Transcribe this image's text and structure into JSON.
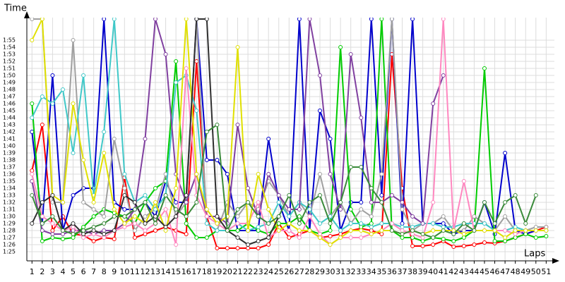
{
  "chart_data": {
    "type": "line",
    "y_label": "Time",
    "x_label": "Laps",
    "x": [
      1,
      2,
      3,
      4,
      5,
      6,
      7,
      8,
      9,
      10,
      11,
      12,
      13,
      14,
      15,
      16,
      17,
      18,
      19,
      20,
      21,
      22,
      23,
      24,
      25,
      26,
      27,
      28,
      29,
      30,
      31,
      32,
      33,
      34,
      35,
      36,
      37,
      38,
      39,
      40,
      41,
      42,
      43,
      44,
      45,
      46,
      47,
      48,
      49,
      50,
      51
    ],
    "xlim": [
      0.5,
      51.8
    ],
    "xticks": [
      1,
      2,
      3,
      4,
      5,
      6,
      7,
      8,
      9,
      10,
      11,
      12,
      13,
      14,
      15,
      16,
      17,
      18,
      19,
      20,
      21,
      22,
      23,
      24,
      25,
      26,
      27,
      28,
      29,
      30,
      31,
      32,
      33,
      34,
      35,
      36,
      37,
      38,
      39,
      40,
      41,
      42,
      43,
      44,
      45,
      46,
      47,
      48,
      49,
      50,
      51
    ],
    "ylim": [
      83.7,
      118.2
    ],
    "yticks": [
      {
        "value": 85,
        "label": "1:25"
      },
      {
        "value": 86,
        "label": "1:26"
      },
      {
        "value": 87,
        "label": "1:27"
      },
      {
        "value": 88,
        "label": "1:28"
      },
      {
        "value": 89,
        "label": "1:29"
      },
      {
        "value": 90,
        "label": "1:30"
      },
      {
        "value": 91,
        "label": "1:31"
      },
      {
        "value": 92,
        "label": "1:32"
      },
      {
        "value": 93,
        "label": "1:33"
      },
      {
        "value": 94,
        "label": "1:34"
      },
      {
        "value": 95,
        "label": "1:35"
      },
      {
        "value": 96,
        "label": "1:36"
      },
      {
        "value": 97,
        "label": "1:37"
      },
      {
        "value": 98,
        "label": "1:38"
      },
      {
        "value": 99,
        "label": "1:39"
      },
      {
        "value": 100,
        "label": "1:40"
      },
      {
        "value": 101,
        "label": "1:41"
      },
      {
        "value": 102,
        "label": "1:42"
      },
      {
        "value": 103,
        "label": "1:43"
      },
      {
        "value": 104,
        "label": "1:44"
      },
      {
        "value": 105,
        "label": "1:45"
      },
      {
        "value": 106,
        "label": "1:46"
      },
      {
        "value": 107,
        "label": "1:47"
      },
      {
        "value": 108,
        "label": "1:48"
      },
      {
        "value": 109,
        "label": "1:49"
      },
      {
        "value": 110,
        "label": "1:50"
      },
      {
        "value": 111,
        "label": "1:51"
      },
      {
        "value": 112,
        "label": "1:52"
      },
      {
        "value": 113,
        "label": "1:53"
      },
      {
        "value": 114,
        "label": "1:54"
      },
      {
        "value": 115,
        "label": "1:55"
      }
    ],
    "grid": true,
    "series": [
      {
        "color": "#ff0000",
        "values": [
          96.5,
          103,
          88,
          90,
          87.5,
          87.3,
          86.5,
          87,
          86.8,
          95.5,
          87,
          87.5,
          88,
          88.5,
          88,
          87.5,
          112,
          90,
          85.5,
          85.5,
          85.5,
          85.5,
          85.5,
          86,
          89,
          87,
          87.5,
          88,
          87,
          87.2,
          87.5,
          88,
          88.3,
          88,
          87.5,
          113,
          94,
          85.8,
          85.8,
          86,
          86.5,
          85.7,
          85.8,
          86,
          86.3,
          86.2,
          86.5,
          87,
          87.5,
          88,
          88.5
        ]
      },
      {
        "color": "#0000cc",
        "values": [
          102,
          89,
          110,
          88,
          93,
          94,
          94,
          118,
          92,
          91,
          91,
          92,
          90,
          95,
          92,
          92,
          118,
          98,
          98,
          96,
          88,
          88,
          88,
          101,
          92,
          88,
          118,
          88,
          105,
          101,
          88,
          92,
          92,
          118,
          93,
          118,
          89,
          118,
          89,
          89,
          89,
          87.5,
          88,
          88,
          92,
          87.5,
          99,
          88,
          87.5,
          88,
          88
        ]
      },
      {
        "color": "#00cc00",
        "values": [
          106,
          86.5,
          87,
          86.8,
          87,
          88.5,
          90,
          91,
          90.5,
          90,
          89,
          92,
          94,
          95,
          112,
          89,
          87,
          87,
          88,
          88,
          88,
          89,
          88,
          87.5,
          89,
          89,
          90,
          88,
          87.5,
          88,
          114,
          91,
          88.5,
          89,
          118,
          88,
          87,
          87,
          86.5,
          87,
          86.8,
          86.5,
          87,
          88,
          111,
          86.5,
          86.5,
          87,
          87.5,
          87,
          87.2
        ]
      },
      {
        "color": "#a0a0a0",
        "values": [
          118,
          118,
          92,
          92,
          115,
          92,
          91,
          90,
          101,
          94,
          88,
          90,
          91,
          96,
          90,
          92,
          118,
          89,
          88,
          92,
          90,
          92,
          91,
          95,
          93,
          90,
          92,
          90,
          96,
          90,
          92,
          89,
          91,
          90,
          96,
          118,
          91,
          88,
          89,
          89,
          90,
          88,
          88,
          90,
          89,
          88,
          90,
          88,
          88,
          88.5,
          88.5
        ]
      },
      {
        "color": "#40c8c8",
        "values": [
          104,
          107,
          106,
          108,
          99,
          110,
          93,
          102,
          118,
          96,
          92,
          93,
          91,
          93,
          109,
          110,
          105,
          89,
          88,
          88,
          89,
          88,
          88.5,
          89,
          92,
          90,
          92,
          91,
          89,
          90,
          88,
          89,
          89,
          88.5,
          89,
          89,
          88.5,
          88.5,
          89,
          89,
          88.5,
          88.5,
          89,
          89,
          89,
          88,
          88,
          88.5,
          88,
          88,
          88
        ]
      },
      {
        "color": "#8040a0",
        "values": [
          95,
          88,
          87.5,
          87.5,
          88,
          88,
          87.5,
          88,
          88,
          89,
          91,
          101,
          118,
          113,
          96,
          92,
          96,
          90,
          90,
          89,
          103,
          94,
          90,
          96,
          93,
          91,
          91,
          118,
          110,
          96,
          91,
          113,
          104,
          92,
          92,
          93,
          92,
          90,
          89,
          106,
          110,
          null,
          null,
          null,
          null,
          null,
          null,
          null,
          null,
          null,
          null
        ]
      },
      {
        "color": "#ff88c0",
        "values": [
          96,
          90,
          89,
          88,
          88.5,
          87,
          87.5,
          87,
          88,
          88.5,
          89,
          88,
          89,
          91,
          86,
          111,
          93,
          90,
          89,
          88,
          89,
          89,
          92,
          87,
          88,
          88,
          87,
          90,
          87.5,
          86,
          87,
          87,
          87,
          87.5,
          88,
          89,
          88,
          87.5,
          87,
          92,
          118,
          88,
          95,
          88,
          88,
          88,
          88,
          87.5,
          88,
          88,
          88
        ]
      },
      {
        "color": "#e0e000",
        "values": [
          115,
          118,
          93,
          92,
          106,
          98,
          92,
          99,
          91,
          89,
          90,
          89,
          92,
          88,
          94,
          118,
          96,
          91,
          89,
          90,
          114,
          88,
          96,
          91,
          88,
          89,
          88,
          88,
          87,
          86,
          87,
          88,
          88,
          87.5,
          88,
          88,
          87.5,
          88,
          87.5,
          88,
          88,
          88,
          87.5,
          88,
          88,
          88,
          87,
          88,
          88,
          88,
          88
        ]
      },
      {
        "color": "#303030",
        "values": [
          89,
          92,
          93,
          88,
          89,
          87.5,
          88,
          87.5,
          88,
          93,
          92,
          89,
          90,
          88.5,
          90,
          93,
          118,
          118,
          90,
          88,
          87,
          86,
          86.5,
          87,
          90,
          null,
          null,
          null,
          null,
          null,
          null,
          null,
          null,
          null,
          null,
          null,
          null,
          null,
          null,
          null,
          null,
          null,
          null,
          null,
          null,
          null,
          null,
          null,
          null,
          null,
          null
        ]
      },
      {
        "color": "#3a8a3a",
        "values": [
          93,
          89,
          90,
          88,
          87.5,
          88,
          88.5,
          89,
          90,
          90,
          91,
          92,
          89,
          93,
          91,
          90,
          92,
          102,
          103,
          88,
          91,
          92,
          90,
          89,
          90,
          93,
          89,
          92,
          93,
          89,
          92,
          97,
          97,
          94,
          92,
          88,
          87.5,
          88,
          87.5,
          87,
          88,
          87.5,
          89,
          88,
          92,
          89,
          92,
          93,
          89,
          93,
          null
        ]
      }
    ]
  }
}
